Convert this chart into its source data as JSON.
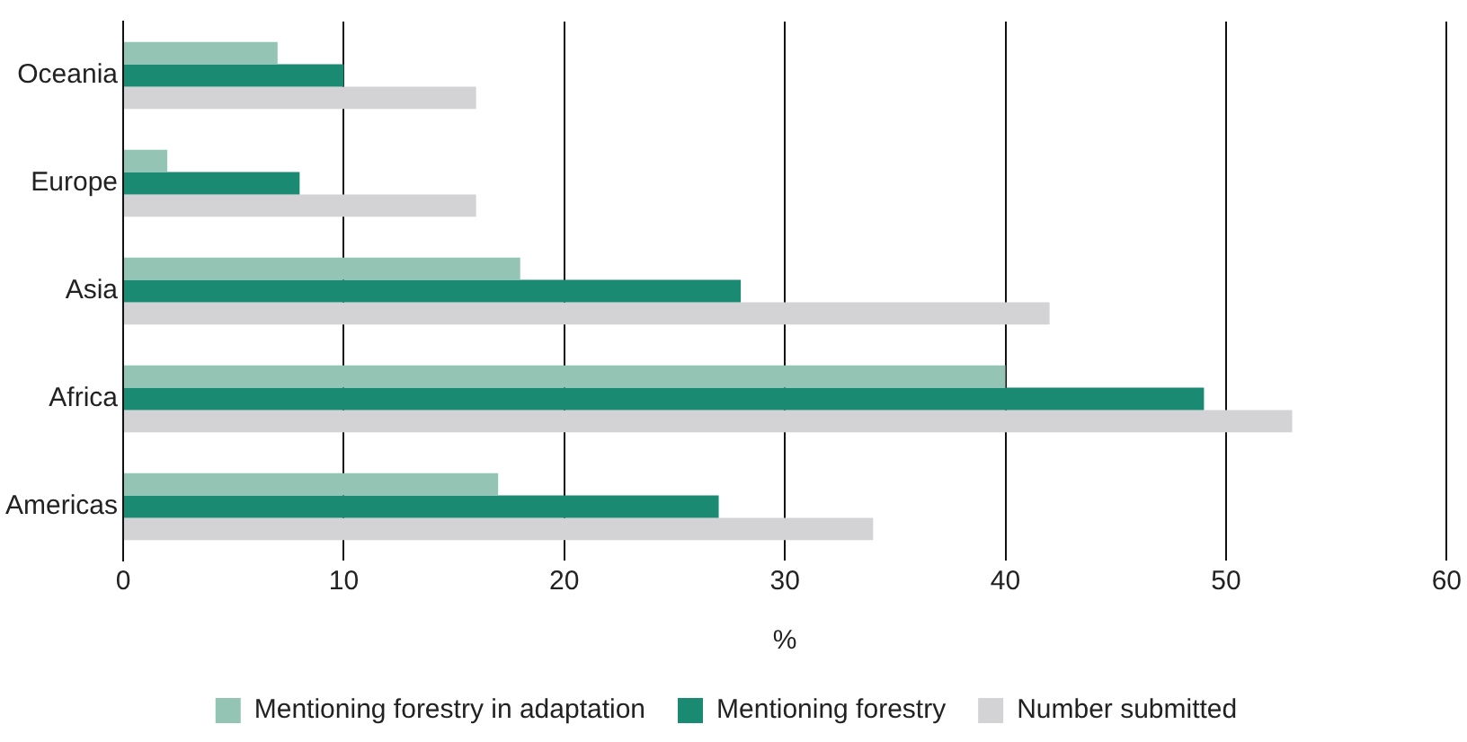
{
  "chart_data": {
    "type": "bar",
    "orientation": "horizontal",
    "categories": [
      "Oceania",
      "Europe",
      "Asia",
      "Africa",
      "Americas"
    ],
    "series": [
      {
        "name": "Mentioning forestry in adaptation",
        "color": "#93c4b4",
        "values": [
          7,
          2,
          18,
          40,
          17
        ]
      },
      {
        "name": "Mentioning forestry",
        "color": "#1b8a72",
        "values": [
          10,
          8,
          28,
          49,
          27
        ]
      },
      {
        "name": "Number submitted",
        "color": "#d3d3d5",
        "values": [
          16,
          16,
          42,
          53,
          34
        ]
      }
    ],
    "xlabel": "%",
    "xlim": [
      0,
      60
    ],
    "xticks": [
      0,
      10,
      20,
      30,
      40,
      50,
      60
    ],
    "grid": "x",
    "legend": "bottom"
  }
}
